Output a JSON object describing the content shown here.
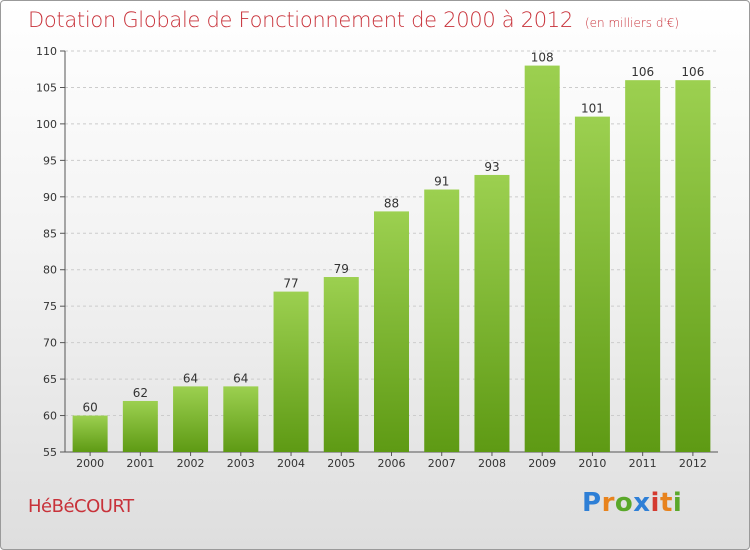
{
  "title": "Dotation Globale de Fonctionnement de 2000 à 2012",
  "unit": "(en milliers d'€)",
  "place": "HéBéCOURT",
  "logo": [
    "P",
    "r",
    "o",
    "x",
    "i",
    "t",
    "i"
  ],
  "colors": {
    "title": "#c8323a",
    "bar_top": "#9cd050",
    "bar_bottom": "#5e9a14",
    "grid": "#cccccc"
  },
  "chart_data": {
    "type": "bar",
    "title": "Dotation Globale de Fonctionnement de 2000 à 2012",
    "subtitle": "(en milliers d'€)",
    "xlabel": "",
    "ylabel": "",
    "categories": [
      "2000",
      "2001",
      "2002",
      "2003",
      "2004",
      "2005",
      "2006",
      "2007",
      "2008",
      "2009",
      "2010",
      "2011",
      "2012"
    ],
    "values": [
      60,
      62,
      64,
      64,
      77,
      79,
      88,
      91,
      93,
      108,
      101,
      106,
      106
    ],
    "ylim": [
      55,
      110
    ],
    "yticks": [
      55,
      60,
      65,
      70,
      75,
      80,
      85,
      90,
      95,
      100,
      105,
      110
    ],
    "grid": "horizontal dashed",
    "data_labels": true
  }
}
